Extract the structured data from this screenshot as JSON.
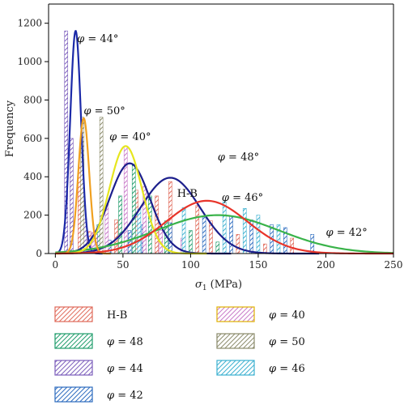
{
  "chart_data": {
    "type": "bar",
    "xlabel_symbol": "σ",
    "xlabel_sub": "1",
    "xlabel_unit": " (MPa)",
    "ylabel": "Frequency",
    "xlim": [
      -5,
      250
    ],
    "ylim": [
      0,
      1300
    ],
    "xticks": [
      0,
      50,
      100,
      150,
      200,
      250
    ],
    "yticks": [
      0,
      200,
      400,
      600,
      800,
      1000,
      1200
    ],
    "series": [
      {
        "name": "H-B",
        "legend": "H-B",
        "curve_label": "H-B",
        "color": "#1c1f8c",
        "hatch": "#e06a5a",
        "curve": {
          "mean": 85,
          "sd": 22,
          "peak": 395
        },
        "bars": [
          [
            18,
            450
          ],
          [
            25,
            115
          ],
          [
            38,
            80
          ],
          [
            45,
            175
          ],
          [
            60,
            330
          ],
          [
            75,
            300
          ],
          [
            85,
            375
          ],
          [
            105,
            250
          ],
          [
            115,
            170
          ],
          [
            135,
            100
          ],
          [
            155,
            50
          ],
          [
            175,
            80
          ]
        ]
      },
      {
        "name": "φ = 48",
        "legend": "φ = 48",
        "curve_label": "φ = 48°",
        "color": "#1c1f8c",
        "hatch": "#1f9c6b",
        "curve": {
          "mean": 55,
          "sd": 15,
          "peak": 470
        },
        "bars": [
          [
            32,
            150
          ],
          [
            48,
            300
          ],
          [
            58,
            465
          ],
          [
            70,
            300
          ],
          [
            82,
            170
          ],
          [
            100,
            120
          ],
          [
            120,
            60
          ]
        ]
      },
      {
        "name": "φ = 44",
        "legend": "φ = 44",
        "curve_label": "φ = 44°",
        "color": "#1c2aa8",
        "hatch": "#7b5dbb",
        "curve": {
          "mean": 15,
          "sd": 4,
          "peak": 1160
        },
        "bars": [
          [
            8,
            1160
          ],
          [
            12,
            600
          ],
          [
            22,
            180
          ],
          [
            30,
            100
          ]
        ]
      },
      {
        "name": "φ = 42",
        "legend": "φ = 42",
        "curve_label": "φ = 42°",
        "color": "#3ab34a",
        "hatch": "#2c6bbf",
        "curve": {
          "mean": 120,
          "sd": 45,
          "peak": 200
        },
        "bars": [
          [
            40,
            70
          ],
          [
            55,
            120
          ],
          [
            65,
            150
          ],
          [
            85,
            160
          ],
          [
            110,
            190
          ],
          [
            130,
            195
          ],
          [
            145,
            175
          ],
          [
            160,
            150
          ],
          [
            170,
            135
          ],
          [
            190,
            100
          ]
        ]
      },
      {
        "name": "φ = 40",
        "legend": "φ = 40",
        "curve_label": "φ = 40°",
        "color": "#e6e61e",
        "hatch": "#c879c8",
        "curve": {
          "mean": 52,
          "sd": 12,
          "peak": 560
        },
        "bars": [
          [
            28,
            110
          ],
          [
            38,
            260
          ],
          [
            52,
            560
          ],
          [
            66,
            350
          ],
          [
            78,
            120
          ],
          [
            94,
            80
          ]
        ]
      },
      {
        "name": "φ = 50",
        "legend": "φ = 50",
        "curve_label": "φ = 50°",
        "color": "#f0a020",
        "hatch": "#8a8a6a",
        "curve": {
          "mean": 21,
          "sd": 4,
          "peak": 705
        },
        "bars": [
          [
            20,
            710
          ],
          [
            34,
            710
          ]
        ]
      },
      {
        "name": "φ = 46",
        "legend": "φ = 46",
        "curve_label": "φ = 46°",
        "color": "#e8342a",
        "hatch": "#3bb0d0",
        "curve": {
          "mean": 112,
          "sd": 30,
          "peak": 275
        },
        "bars": [
          [
            62,
            230
          ],
          [
            95,
            240
          ],
          [
            125,
            270
          ],
          [
            140,
            235
          ],
          [
            150,
            200
          ],
          [
            165,
            150
          ]
        ]
      }
    ]
  }
}
